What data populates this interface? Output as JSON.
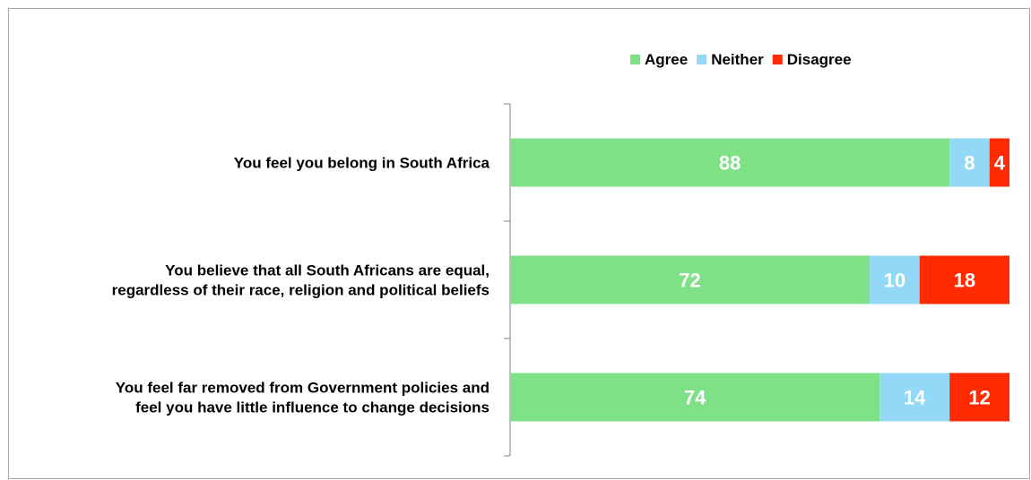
{
  "chart_data": {
    "type": "bar",
    "orientation": "horizontal",
    "stacked": true,
    "title": "",
    "xlabel": "",
    "ylabel": "",
    "xlim": [
      0,
      100
    ],
    "legend_position": "top-right",
    "grid": false,
    "categories": [
      [
        "You feel you belong in South Africa"
      ],
      [
        "You believe that all South Africans are equal,",
        "regardless of their race, religion and political beliefs"
      ],
      [
        "You feel far removed from Government policies and",
        "feel you have little influence to change decisions"
      ]
    ],
    "series": [
      {
        "name": "Agree",
        "color": "#7EE087",
        "values": [
          88,
          72,
          74
        ]
      },
      {
        "name": "Neither",
        "color": "#94D8F8",
        "values": [
          8,
          10,
          14
        ]
      },
      {
        "name": "Disagree",
        "color": "#FF2A00",
        "values": [
          4,
          18,
          12
        ]
      }
    ]
  }
}
